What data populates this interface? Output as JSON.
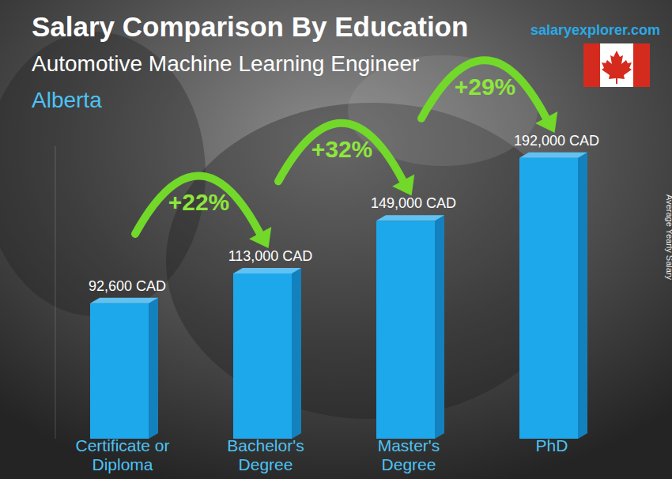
{
  "chart_data": {
    "type": "bar",
    "title": "Salary Comparison By Education",
    "subtitle": "Automotive Machine Learning Engineer",
    "location": "Alberta",
    "source": "salaryexplorer.com",
    "ylabel": "Average Yearly Salary",
    "categories": [
      "Certificate or Diploma",
      "Bachelor's Degree",
      "Master's Degree",
      "PhD"
    ],
    "values": [
      92600,
      113000,
      149000,
      192000
    ],
    "value_labels": [
      "92,600 CAD",
      "113,000 CAD",
      "149,000 CAD",
      "192,000 CAD"
    ],
    "annotations": [
      "+22%",
      "+32%",
      "+29%"
    ],
    "color": "#1ea8ec",
    "ylim": [
      0,
      200000
    ],
    "yticks": [],
    "tick_labels": false,
    "grid": false,
    "data_labels": true
  }
}
